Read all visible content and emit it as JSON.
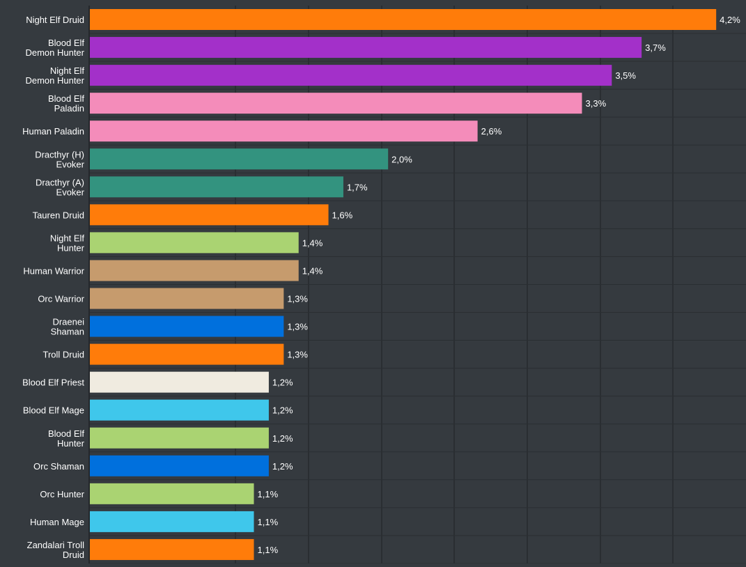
{
  "colors": {
    "background": "#353a3f",
    "grid": "#2a2e32",
    "axis": "#24272b",
    "label_text": "#ffffff"
  },
  "chart_data": {
    "type": "bar",
    "orientation": "horizontal",
    "grid": true,
    "xlim": [
      0,
      4.4
    ],
    "categories": [
      "Night Elf Druid",
      "Blood Elf\nDemon Hunter",
      "Night Elf\nDemon Hunter",
      "Blood Elf\nPaladin",
      "Human Paladin",
      "Dracthyr (H)\nEvoker",
      "Dracthyr (A)\nEvoker",
      "Tauren Druid",
      "Night Elf\nHunter",
      "Human Warrior",
      "Orc Warrior",
      "Draenei\nShaman",
      "Troll Druid",
      "Blood Elf Priest",
      "Blood Elf Mage",
      "Blood Elf\nHunter",
      "Orc Shaman",
      "Orc Hunter",
      "Human Mage",
      "Zandalari Troll\nDruid"
    ],
    "values": [
      4.2,
      3.7,
      3.5,
      3.3,
      2.6,
      2.0,
      1.7,
      1.6,
      1.4,
      1.4,
      1.3,
      1.3,
      1.3,
      1.2,
      1.2,
      1.2,
      1.2,
      1.1,
      1.1,
      1.1
    ],
    "value_labels": [
      "4,2%",
      "3,7%",
      "3,5%",
      "3,3%",
      "2,6%",
      "2,0%",
      "1,7%",
      "1,6%",
      "1,4%",
      "1,4%",
      "1,3%",
      "1,3%",
      "1,3%",
      "1,2%",
      "1,2%",
      "1,2%",
      "1,2%",
      "1,1%",
      "1,1%",
      "1,1%"
    ],
    "bar_colors": [
      "#ff7c0a",
      "#a330c9",
      "#a330c9",
      "#f48cba",
      "#f48cba",
      "#33937f",
      "#33937f",
      "#ff7c0a",
      "#aad372",
      "#c69b6d",
      "#c69b6d",
      "#0070dd",
      "#ff7c0a",
      "#f0ebe0",
      "#3fc7eb",
      "#aad372",
      "#0070dd",
      "#aad372",
      "#3fc7eb",
      "#ff7c0a"
    ]
  }
}
